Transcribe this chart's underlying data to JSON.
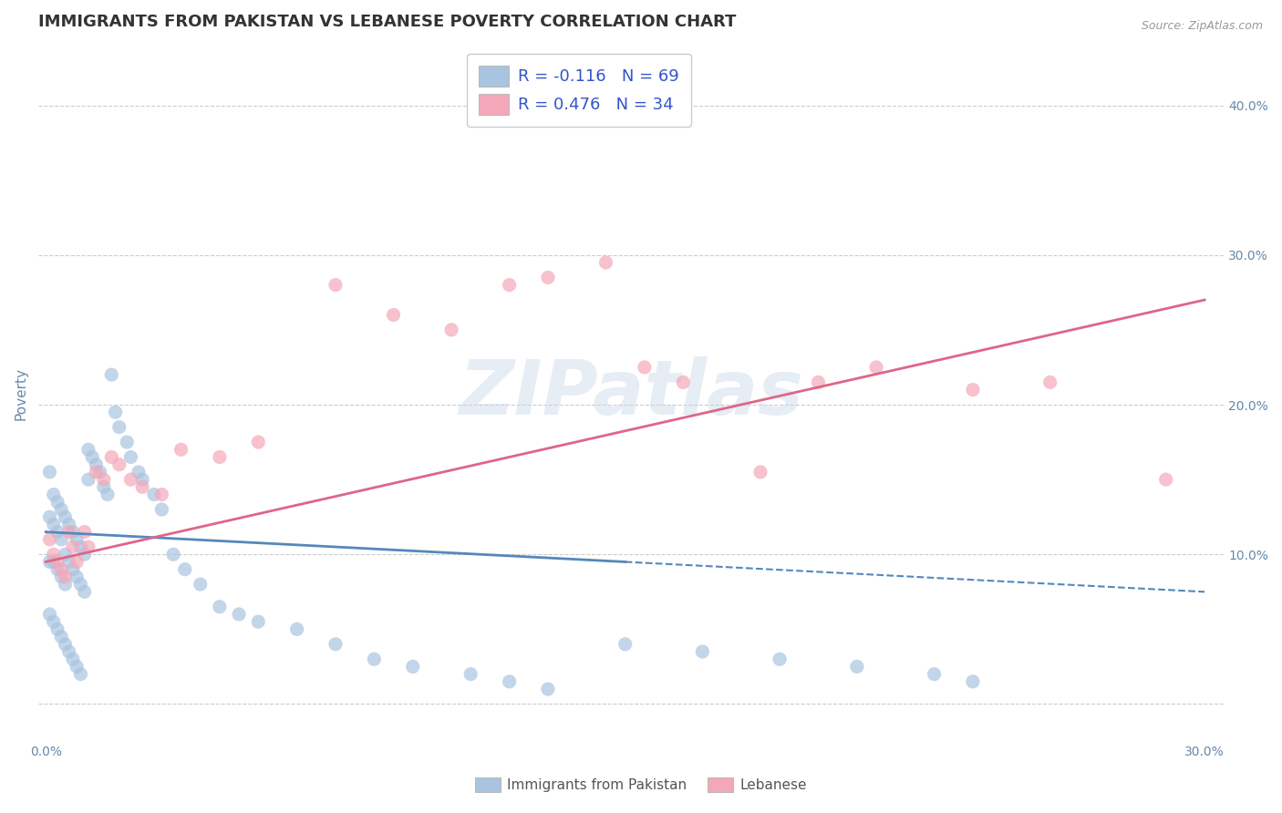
{
  "title": "IMMIGRANTS FROM PAKISTAN VS LEBANESE POVERTY CORRELATION CHART",
  "source": "Source: ZipAtlas.com",
  "ylabel": "Poverty",
  "xlim": [
    -0.002,
    0.305
  ],
  "ylim": [
    -0.025,
    0.44
  ],
  "xtick_pos": [
    0.0,
    0.05,
    0.1,
    0.15,
    0.2,
    0.25,
    0.3
  ],
  "xtick_labels": [
    "0.0%",
    "",
    "",
    "",
    "",
    "",
    "30.0%"
  ],
  "ytick_pos": [
    0.0,
    0.1,
    0.2,
    0.3,
    0.4
  ],
  "ytick_labels_right": [
    "",
    "10.0%",
    "20.0%",
    "30.0%",
    "40.0%"
  ],
  "series1_name": "Immigrants from Pakistan",
  "series2_name": "Lebanese",
  "series1_color": "#a8c4e0",
  "series2_color": "#f4a7b9",
  "series1_line_color": "#5588bb",
  "series2_line_color": "#dd6688",
  "watermark": "ZIPatlas",
  "background_color": "#ffffff",
  "grid_color": "#cccccc",
  "title_color": "#333333",
  "axis_label_color": "#6688aa",
  "legend_label_color": "#3355cc",
  "scatter1_x": [
    0.001,
    0.001,
    0.001,
    0.002,
    0.002,
    0.002,
    0.003,
    0.003,
    0.003,
    0.004,
    0.004,
    0.004,
    0.005,
    0.005,
    0.005,
    0.006,
    0.006,
    0.007,
    0.007,
    0.008,
    0.008,
    0.009,
    0.009,
    0.01,
    0.01,
    0.011,
    0.011,
    0.012,
    0.013,
    0.014,
    0.015,
    0.016,
    0.017,
    0.018,
    0.019,
    0.021,
    0.022,
    0.024,
    0.025,
    0.028,
    0.03,
    0.033,
    0.036,
    0.04,
    0.045,
    0.05,
    0.055,
    0.065,
    0.075,
    0.085,
    0.095,
    0.11,
    0.12,
    0.13,
    0.15,
    0.17,
    0.19,
    0.21,
    0.23,
    0.24,
    0.001,
    0.002,
    0.003,
    0.004,
    0.005,
    0.006,
    0.007,
    0.008,
    0.009
  ],
  "scatter1_y": [
    0.155,
    0.125,
    0.095,
    0.14,
    0.12,
    0.095,
    0.135,
    0.115,
    0.09,
    0.13,
    0.11,
    0.085,
    0.125,
    0.1,
    0.08,
    0.12,
    0.095,
    0.115,
    0.09,
    0.11,
    0.085,
    0.105,
    0.08,
    0.1,
    0.075,
    0.17,
    0.15,
    0.165,
    0.16,
    0.155,
    0.145,
    0.14,
    0.22,
    0.195,
    0.185,
    0.175,
    0.165,
    0.155,
    0.15,
    0.14,
    0.13,
    0.1,
    0.09,
    0.08,
    0.065,
    0.06,
    0.055,
    0.05,
    0.04,
    0.03,
    0.025,
    0.02,
    0.015,
    0.01,
    0.04,
    0.035,
    0.03,
    0.025,
    0.02,
    0.015,
    0.06,
    0.055,
    0.05,
    0.045,
    0.04,
    0.035,
    0.03,
    0.025,
    0.02
  ],
  "scatter2_x": [
    0.001,
    0.002,
    0.003,
    0.004,
    0.005,
    0.006,
    0.007,
    0.008,
    0.01,
    0.011,
    0.013,
    0.015,
    0.017,
    0.019,
    0.022,
    0.025,
    0.03,
    0.035,
    0.045,
    0.055,
    0.075,
    0.09,
    0.105,
    0.12,
    0.13,
    0.145,
    0.155,
    0.165,
    0.185,
    0.2,
    0.215,
    0.24,
    0.26,
    0.29
  ],
  "scatter2_y": [
    0.11,
    0.1,
    0.095,
    0.09,
    0.085,
    0.115,
    0.105,
    0.095,
    0.115,
    0.105,
    0.155,
    0.15,
    0.165,
    0.16,
    0.15,
    0.145,
    0.14,
    0.17,
    0.165,
    0.175,
    0.28,
    0.26,
    0.25,
    0.28,
    0.285,
    0.295,
    0.225,
    0.215,
    0.155,
    0.215,
    0.225,
    0.21,
    0.215,
    0.15
  ],
  "line1_solid_end": 0.15,
  "line1_y0": 0.115,
  "line1_y1": 0.075,
  "line2_y0": 0.095,
  "line2_y1": 0.27,
  "title_fontsize": 13,
  "label_fontsize": 11,
  "tick_fontsize": 10,
  "legend_fontsize": 13
}
